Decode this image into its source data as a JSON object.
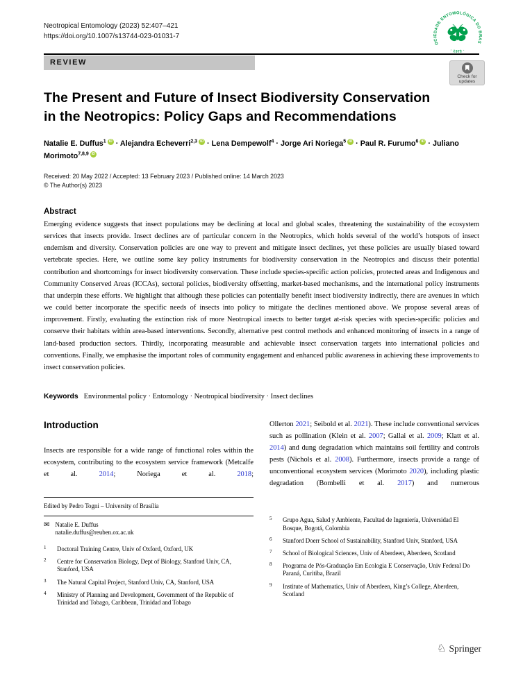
{
  "colors": {
    "citation": "#2733cf",
    "orcid_green": "#a6ce39",
    "logo_green": "#00a04c",
    "banner_gray": "#c5c5c5"
  },
  "header": {
    "journal_line": "Neotropical Entomology (2023) 52:407–421",
    "doi_line": "https://doi.org/10.1007/s13744-023-01031-7"
  },
  "journal_logo": {
    "ring_text": "SOCIEDADE ENTOMOLÓGICA DO BRASIL",
    "year_text": "· 1972 ·"
  },
  "review_banner": {
    "label": "REVIEW"
  },
  "check_updates": {
    "line1": "Check for",
    "line2": "updates"
  },
  "title": {
    "line1": "The Present and Future of Insect Biodiversity Conservation",
    "line2": "in the Neotropics: Policy Gaps and Recommendations"
  },
  "authors": {
    "separator": "·",
    "orcid_label": "iD",
    "list": [
      {
        "name": "Natalie E. Duffus",
        "sup": "1",
        "orcid": true
      },
      {
        "name": "Alejandra Echeverri",
        "sup": "2,3",
        "orcid": true
      },
      {
        "name": "Lena Dempewolf",
        "sup": "4",
        "orcid": false
      },
      {
        "name": "Jorge Ari Noriega",
        "sup": "5",
        "orcid": true
      },
      {
        "name": "Paul R. Furumo",
        "sup": "6",
        "orcid": true
      },
      {
        "name": "Juliano Morimoto",
        "sup": "7,8,9",
        "orcid": true
      }
    ]
  },
  "dates": {
    "received": "Received: 20 May 2022 / Accepted: 13 February 2023 / Published online: 14 March 2023",
    "copyright": "© The Author(s) 2023"
  },
  "abstract": {
    "heading": "Abstract",
    "text": "Emerging evidence suggests that insect populations may be declining at local and global scales, threatening the sustainability of the ecosystem services that insects provide. Insect declines are of particular concern in the Neotropics, which holds several of the world’s hotspots of insect endemism and diversity. Conservation policies are one way to prevent and mitigate insect declines, yet these policies are usually biased toward vertebrate species. Here, we outline some key policy instruments for biodiversity conservation in the Neotropics and discuss their potential contribution and shortcomings for insect biodiversity conservation. These include species-specific action policies, protected areas and Indigenous and Community Conserved Areas (ICCAs), sectoral policies, biodiversity offsetting, market-based mechanisms, and the international policy instruments that underpin these efforts. We highlight that although these policies can potentially benefit insect biodiversity indirectly, there are avenues in which we could better incorporate the specific needs of insects into policy to mitigate the declines mentioned above. We propose several areas of improvement. Firstly, evaluating the extinction risk of more Neotropical insects to better target at-risk species with species-specific policies and conserve their habitats within area-based interventions. Secondly, alternative pest control methods and enhanced monitoring of insects in a range of land-based production sectors. Thirdly, incorporating measurable and achievable insect conservation targets into international policies and conventions. Finally, we emphasise the important roles of community engagement and enhanced public awareness in achieving these improvements to insect conservation policies."
  },
  "keywords": {
    "label": "Keywords",
    "text": "Environmental policy · Entomology · Neotropical biodiversity · Insect declines"
  },
  "introduction": {
    "heading": "Introduction",
    "left_paragraph": [
      {
        "t": "Insects are responsible for a wide range of functional roles within the ecosystem, contributing to the ecosystem service framework (Metcalfe et al. "
      },
      {
        "c": "2014"
      },
      {
        "t": "; Noriega et al. "
      },
      {
        "c": "2018"
      },
      {
        "t": ";"
      }
    ],
    "right_paragraph": [
      {
        "t": "Ollerton "
      },
      {
        "c": "2021"
      },
      {
        "t": "; Seibold et al. "
      },
      {
        "c": "2021"
      },
      {
        "t": "). These include conventional services such as pollination (Klein et al. "
      },
      {
        "c": "2007"
      },
      {
        "t": "; Gallai et al. "
      },
      {
        "c": "2009"
      },
      {
        "t": "; Klatt et al. "
      },
      {
        "c": "2014"
      },
      {
        "t": ") and dung degradation which maintains soil fertility and controls pests (Nichols et al. "
      },
      {
        "c": "2008"
      },
      {
        "t": "). Furthermore, insects provide a range of unconventional ecosystem services (Morimoto "
      },
      {
        "c": "2020"
      },
      {
        "t": "), including plastic degradation (Bombelli et al. "
      },
      {
        "c": "2017"
      },
      {
        "t": ") and numerous"
      }
    ]
  },
  "footnotes": {
    "edited_by": "Edited by Pedro Togni – University of Brasília",
    "correspondence_name": "Natalie E. Duffus",
    "correspondence_email": "natalie.duffus@reuben.ox.ac.uk",
    "left_affiliations": [
      {
        "n": "1",
        "text": "Doctoral Training Centre, Univ of Oxford, Oxford, UK"
      },
      {
        "n": "2",
        "text": "Centre for Conservation Biology, Dept of Biology, Stanford Univ, CA, Stanford, USA"
      },
      {
        "n": "3",
        "text": "The Natural Capital Project, Stanford Univ, CA, Stanford, USA"
      },
      {
        "n": "4",
        "text": "Ministry of Planning and Development, Government of the Republic of Trinidad and Tobago, Caribbean, Trinidad and Tobago"
      }
    ],
    "right_affiliations": [
      {
        "n": "5",
        "text": "Grupo Agua, Salud y Ambiente, Facultad de Ingeniería, Universidad El Bosque, Bogotá, Colombia"
      },
      {
        "n": "6",
        "text": "Stanford Doerr School of Sustainability, Stanford Univ, Stanford, USA"
      },
      {
        "n": "7",
        "text": "School of Biological Sciences, Univ of Aberdeen, Aberdeen, Scotland"
      },
      {
        "n": "8",
        "text": "Programa de Pós-Graduação Em Ecologia E Conservação, Univ Federal Do Paraná, Curitiba, Brazil"
      },
      {
        "n": "9",
        "text": "Institute of Mathematics, Univ of Aberdeen, King’s College, Aberdeen, Scotland"
      }
    ]
  },
  "publisher": {
    "name": "Springer"
  }
}
